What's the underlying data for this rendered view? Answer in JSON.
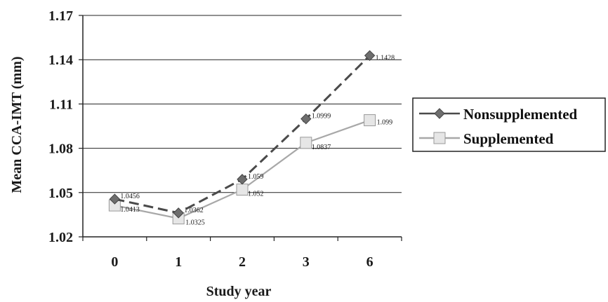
{
  "chart_data": {
    "type": "line",
    "title": "",
    "xlabel": "Study year",
    "ylabel": "Mean CCA-IMT (mm)",
    "categories": [
      "0",
      "1",
      "2",
      "3",
      "6"
    ],
    "ylim": [
      1.02,
      1.17
    ],
    "yticks": [
      "1.02",
      "1.05",
      "1.08",
      "1.11",
      "1.14",
      "1.17"
    ],
    "grid": true,
    "legend_position": "right",
    "series": [
      {
        "name": "Nonsupplemented",
        "values": [
          1.0456,
          1.0362,
          1.059,
          1.0999,
          1.1428
        ],
        "labels": [
          "1.0456",
          "1.0362",
          "1.059",
          "1.0999",
          "1.1428"
        ],
        "line_style": "dashed",
        "marker": "diamond",
        "color": "#4a4a4a",
        "marker_color": "#6e6e6e"
      },
      {
        "name": "Supplemented",
        "values": [
          1.0413,
          1.0325,
          1.052,
          1.0837,
          1.099
        ],
        "labels": [
          "1.0413",
          "1.0325",
          "1.052",
          "1.0837",
          "1.099"
        ],
        "line_style": "solid",
        "marker": "square",
        "color": "#a8a8a8",
        "marker_color": "#e6e6e6"
      }
    ]
  }
}
